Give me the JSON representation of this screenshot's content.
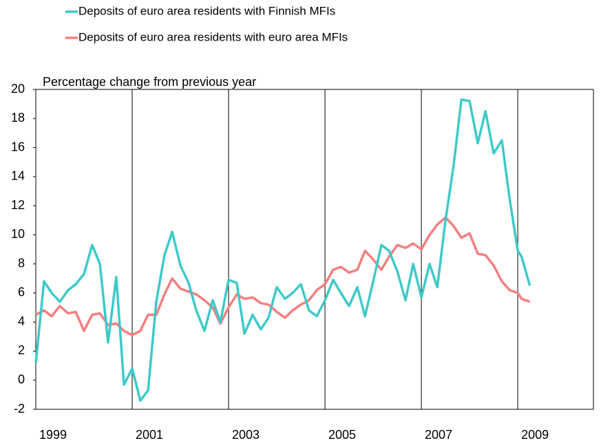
{
  "chart_data": {
    "type": "line",
    "y_label": "Percentage change from previous year",
    "x": [
      1999.0,
      1999.17,
      1999.33,
      1999.5,
      1999.67,
      1999.83,
      2000.0,
      2000.17,
      2000.33,
      2000.5,
      2000.67,
      2000.83,
      2001.0,
      2001.17,
      2001.33,
      2001.5,
      2001.67,
      2001.83,
      2002.0,
      2002.17,
      2002.33,
      2002.5,
      2002.67,
      2002.83,
      2003.0,
      2003.17,
      2003.33,
      2003.5,
      2003.67,
      2003.83,
      2004.0,
      2004.17,
      2004.33,
      2004.5,
      2004.67,
      2004.83,
      2005.0,
      2005.17,
      2005.33,
      2005.5,
      2005.67,
      2005.83,
      2006.0,
      2006.17,
      2006.33,
      2006.5,
      2006.67,
      2006.83,
      2007.0,
      2007.17,
      2007.33,
      2007.5,
      2007.67,
      2007.83,
      2008.0,
      2008.17,
      2008.33,
      2008.5,
      2008.67,
      2008.83,
      2009.0,
      2009.08,
      2009.25
    ],
    "series": [
      {
        "name": "Deposits of euro area residents with Finnish MFIs",
        "color": "#3ec9c9",
        "values": [
          1.2,
          6.8,
          6.0,
          5.4,
          6.2,
          6.6,
          7.3,
          9.3,
          8.0,
          2.6,
          7.1,
          -0.3,
          0.8,
          -1.4,
          -0.7,
          5.4,
          8.6,
          10.2,
          7.9,
          6.7,
          4.8,
          3.4,
          5.5,
          4.0,
          6.9,
          6.7,
          3.2,
          4.5,
          3.5,
          4.3,
          6.4,
          5.6,
          6.0,
          6.6,
          4.8,
          4.4,
          5.5,
          6.9,
          6.0,
          5.1,
          6.4,
          4.4,
          6.8,
          9.3,
          8.9,
          7.5,
          5.5,
          8.0,
          5.7,
          8.0,
          6.4,
          11.0,
          14.8,
          19.3,
          19.2,
          16.3,
          18.5,
          15.6,
          16.5,
          12.5,
          8.9,
          8.5,
          6.5
        ]
      },
      {
        "name": "Deposits of euro area residents with euro area MFIs",
        "color": "#f47f7f",
        "values": [
          4.5,
          4.8,
          4.4,
          5.1,
          4.6,
          4.7,
          3.4,
          4.5,
          4.6,
          3.8,
          3.9,
          3.4,
          3.1,
          3.4,
          4.5,
          4.5,
          5.9,
          7.0,
          6.3,
          6.1,
          5.9,
          5.5,
          5.0,
          3.9,
          5.0,
          5.9,
          5.6,
          5.7,
          5.3,
          5.2,
          4.7,
          4.3,
          4.8,
          5.2,
          5.5,
          6.2,
          6.6,
          7.6,
          7.8,
          7.4,
          7.6,
          8.9,
          8.3,
          7.6,
          8.5,
          9.3,
          9.1,
          9.4,
          9.0,
          10.0,
          10.7,
          11.2,
          10.6,
          9.8,
          10.1,
          8.7,
          8.6,
          7.9,
          6.8,
          6.2,
          6.0,
          5.6,
          5.4
        ]
      }
    ],
    "xlim": [
      1999,
      2010.57
    ],
    "xticks": [
      1999,
      2001,
      2003,
      2005,
      2007,
      2009
    ],
    "ylim": [
      -2,
      20
    ],
    "yticks": [
      -2,
      0,
      2,
      4,
      6,
      8,
      10,
      12,
      14,
      16,
      18,
      20
    ],
    "grid": "x"
  }
}
